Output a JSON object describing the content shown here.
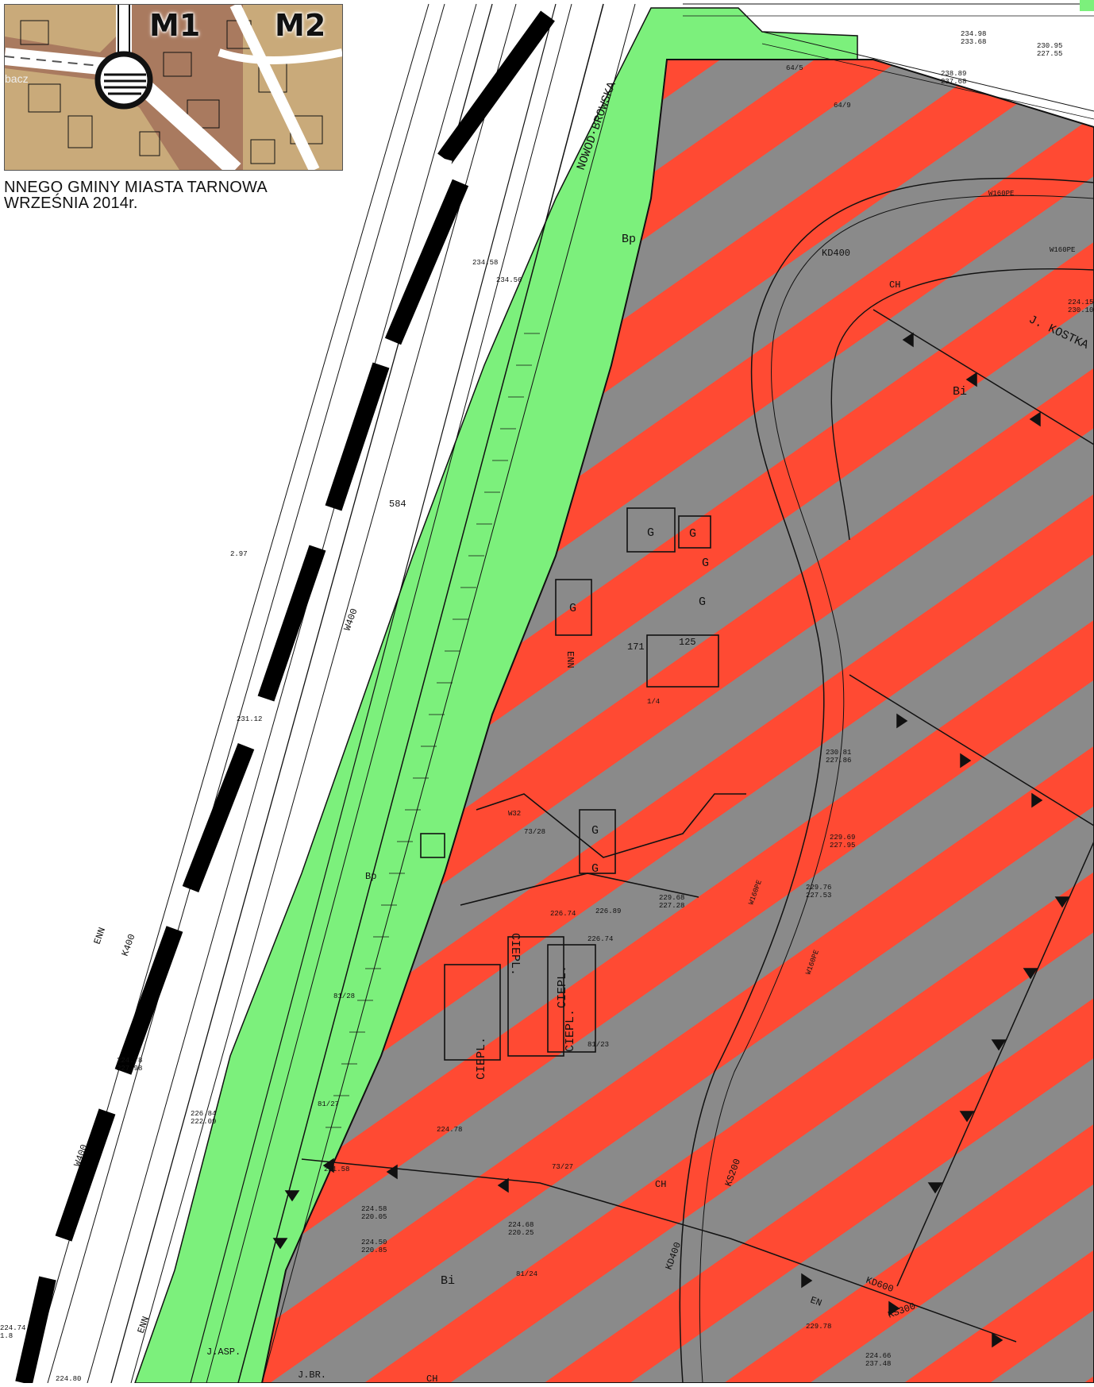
{
  "inset": {
    "label_m1": "M1",
    "label_m2": "M2",
    "bacz_text": "bacz"
  },
  "caption": {
    "line1": "NNEGO GMINY MIASTA TARNOWA",
    "line2": "WRZEŚNIA 2014r."
  },
  "colors": {
    "hatch_red": "#ff4a33",
    "hatch_gray": "#8a8a8a",
    "green_zone": "#7cf07c",
    "inset_tan": "#c9aa7a",
    "inset_brown": "#a97a5f"
  },
  "map_labels": {
    "nowodabrowska": "NOWOD·BROWSKA",
    "j_kostka": "J. KOSTKA",
    "j_asp": "J.ASP.",
    "j_br": "J.BR.",
    "ciepl1": "CIEPL.",
    "ciepl2": "CIEPL.",
    "ciepl3": "CIEPL.",
    "ciepl4": "CIEPL.",
    "bp1": "Bp",
    "bp2": "Bp",
    "bi1": "Bi",
    "bi2": "Bi",
    "ch1": "CH",
    "ch2": "CH",
    "ch3": "CH",
    "g1": "G",
    "g2": "G",
    "g3": "G",
    "g4": "G",
    "g5": "G",
    "g6": "G",
    "g7": "G",
    "n125": "125",
    "n171": "171",
    "n584": "584",
    "p64_5": "64/5",
    "p64_9": "64/9",
    "p73_28": "73/28",
    "p73_27": "73/27",
    "p81_27": "81/27",
    "p81_24": "81/24",
    "p81_28": "81/28",
    "p81_23": "81/23",
    "p1_4": "1/4",
    "w32": "W32",
    "kd400": "KD400",
    "kd600": "KD600",
    "kd400b": "KD400",
    "ks300": "KS300",
    "ks200": "KS200",
    "k400": "K400",
    "w400": "W400",
    "w400b": "W400",
    "enn": "ENN",
    "enn2": "ENN",
    "enn3": "ENN",
    "en": "EN",
    "w160pe": "W160PE",
    "w160pe2": "W160PE",
    "w160pe3": "W160PE",
    "w160pe4": "W160PE",
    "v1": "234.98",
    "v2": "233.68",
    "v3": "230.95",
    "v4": "227.55",
    "v5": "238.89",
    "v6": "237.68",
    "v7": "234.58",
    "v8": "234.56",
    "v9": "226.74",
    "v10": "226.89",
    "v11": "226.74",
    "v12": "229.68",
    "v13": "227.28",
    "v14": "229.76",
    "v15": "227.53",
    "v16": "229.69",
    "v17": "227.95",
    "v18": "230.81",
    "v19": "227.86",
    "v20": "224.80",
    "v21": "224.78",
    "v22": "221.58",
    "v23": "224.58",
    "v24": "220.05",
    "v25": "224.68",
    "v26": "220.25",
    "v27": "224.50",
    "v28": "220.85",
    "v29": "224.78",
    "v30": "227.98",
    "v31": "224.74",
    "v32": "1.8",
    "v33": "229.78",
    "v34": "224.66",
    "v35": "237.48",
    "v36": "226.84",
    "v37": "222.09",
    "v38": "231.12",
    "v39": "224.15",
    "v40": "230.10",
    "v41": "2.97"
  }
}
